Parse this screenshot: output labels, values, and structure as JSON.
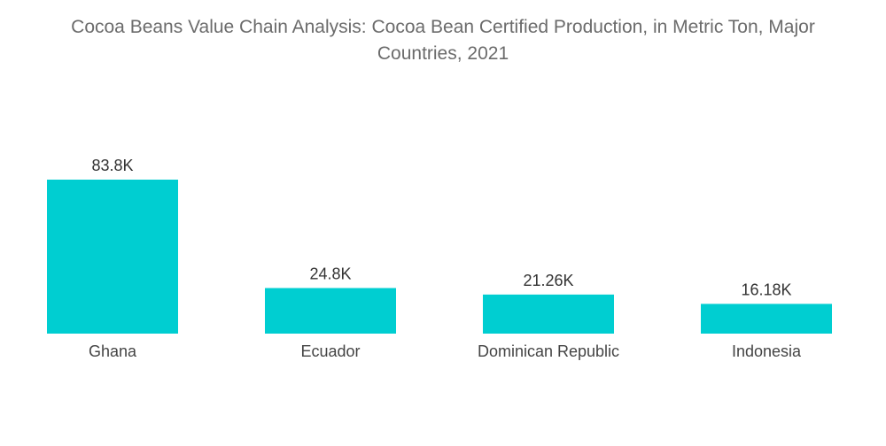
{
  "chart_data": {
    "type": "bar",
    "title_line1": "Cocoa Beans Value Chain Analysis: Cocoa Bean Certified Production, in Metric Ton, Major",
    "title_line2": "Countries, 2021",
    "categories": [
      "Ghana",
      "Ecuador",
      "Dominican Republic",
      "Indonesia"
    ],
    "values": [
      83.8,
      24.8,
      21.26,
      16.18
    ],
    "data_labels": [
      "83.8K",
      "24.8K",
      "21.26K",
      "16.18K"
    ],
    "xlabel": "",
    "ylabel": "",
    "ylim": [
      0,
      83.8
    ],
    "grid": false,
    "legend": "none",
    "bar_color": "#00ced1"
  }
}
